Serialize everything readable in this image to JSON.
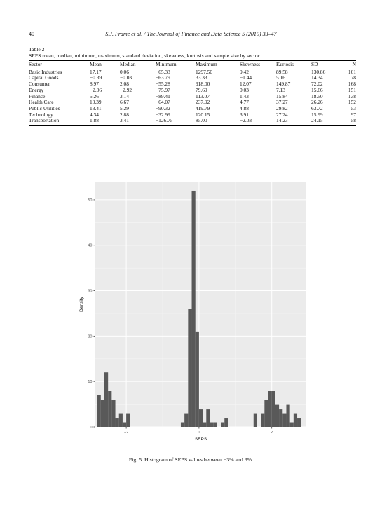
{
  "header": {
    "page_number": "40",
    "running_title": "S.J. Frame et al. / The Journal of Finance and Data Science 5 (2019) 33–47"
  },
  "table": {
    "label": "Table 2",
    "caption": "SEPS mean, median, minimum, maximum, standard deviation, skewness, kurtosis and sample size by sector.",
    "columns": [
      "Sector",
      "Mean",
      "Median",
      "Minimum",
      "Maximum",
      "Skewness",
      "Kurtosis",
      "SD",
      "N"
    ],
    "rows": [
      [
        "Basic Industries",
        "17.17",
        "0.06",
        "−65.33",
        "1297.50",
        "9.42",
        "89.58",
        "130.86",
        "101"
      ],
      [
        "Capital Goods",
        "−0.39",
        "−0.03",
        "−63.79",
        "33.33",
        "−1.44",
        "5.16",
        "14.34",
        "78"
      ],
      [
        "Consumer",
        "8.97",
        "2.08",
        "−55.28",
        "918.00",
        "12.07",
        "149.87",
        "72.02",
        "168"
      ],
      [
        "Energy",
        "−2.06",
        "−2.92",
        "−75.97",
        "79.69",
        "0.03",
        "7.13",
        "15.66",
        "151"
      ],
      [
        "Finance",
        "5.26",
        "3.14",
        "−89.41",
        "113.07",
        "1.43",
        "15.84",
        "18.50",
        "138"
      ],
      [
        "Health Care",
        "10.39",
        "6.67",
        "−64.07",
        "237.92",
        "4.77",
        "37.27",
        "26.26",
        "152"
      ],
      [
        "Public Utilities",
        "13.41",
        "5.29",
        "−90.32",
        "419.79",
        "4.88",
        "29.82",
        "63.72",
        "53"
      ],
      [
        "Technology",
        "4.34",
        "2.88",
        "−32.99",
        "120.15",
        "3.91",
        "27.24",
        "15.99",
        "97"
      ],
      [
        "Transportation",
        "1.88",
        "3.41",
        "−126.75",
        "85.00",
        "−2.03",
        "14.23",
        "24.15",
        "58"
      ]
    ]
  },
  "figure": {
    "caption": "Fig. 5. Histogram of SEPS values between −3% and 3%."
  },
  "chart_data": {
    "type": "bar",
    "xlabel": "SEPS",
    "ylabel": "Density",
    "xlim": [
      -2.85,
      2.95
    ],
    "ylim": [
      0,
      54
    ],
    "xticks": [
      -2,
      0,
      2
    ],
    "xtick_labels": [
      "−2",
      "0",
      "2"
    ],
    "yticks": [
      0,
      10,
      20,
      30,
      40,
      50
    ],
    "grid": true,
    "bin_width": 0.1,
    "bin_starts": [
      -2.8,
      -2.7,
      -2.6,
      -2.5,
      -2.4,
      -2.3,
      -2.2,
      -2.1,
      -2.0,
      -0.5,
      -0.4,
      -0.3,
      -0.2,
      -0.1,
      0.0,
      0.1,
      0.2,
      0.3,
      0.4,
      0.6,
      0.7,
      1.5,
      1.7,
      1.8,
      1.9,
      2.0,
      2.1,
      2.2,
      2.3,
      2.4,
      2.5,
      2.6,
      2.7
    ],
    "values": [
      7,
      6,
      12,
      8,
      6,
      2,
      3,
      1,
      3,
      1,
      3,
      26,
      52,
      21,
      4,
      1,
      4,
      1,
      1,
      1,
      2,
      3,
      3,
      6,
      8,
      8,
      5,
      4,
      3,
      5,
      1,
      3,
      2
    ],
    "colors": {
      "panel": "#ebebeb",
      "grid_major": "#ffffff",
      "grid_minor": "#f5f5f5",
      "bar": "#595959",
      "axis_text": "#4d4d4d"
    }
  }
}
